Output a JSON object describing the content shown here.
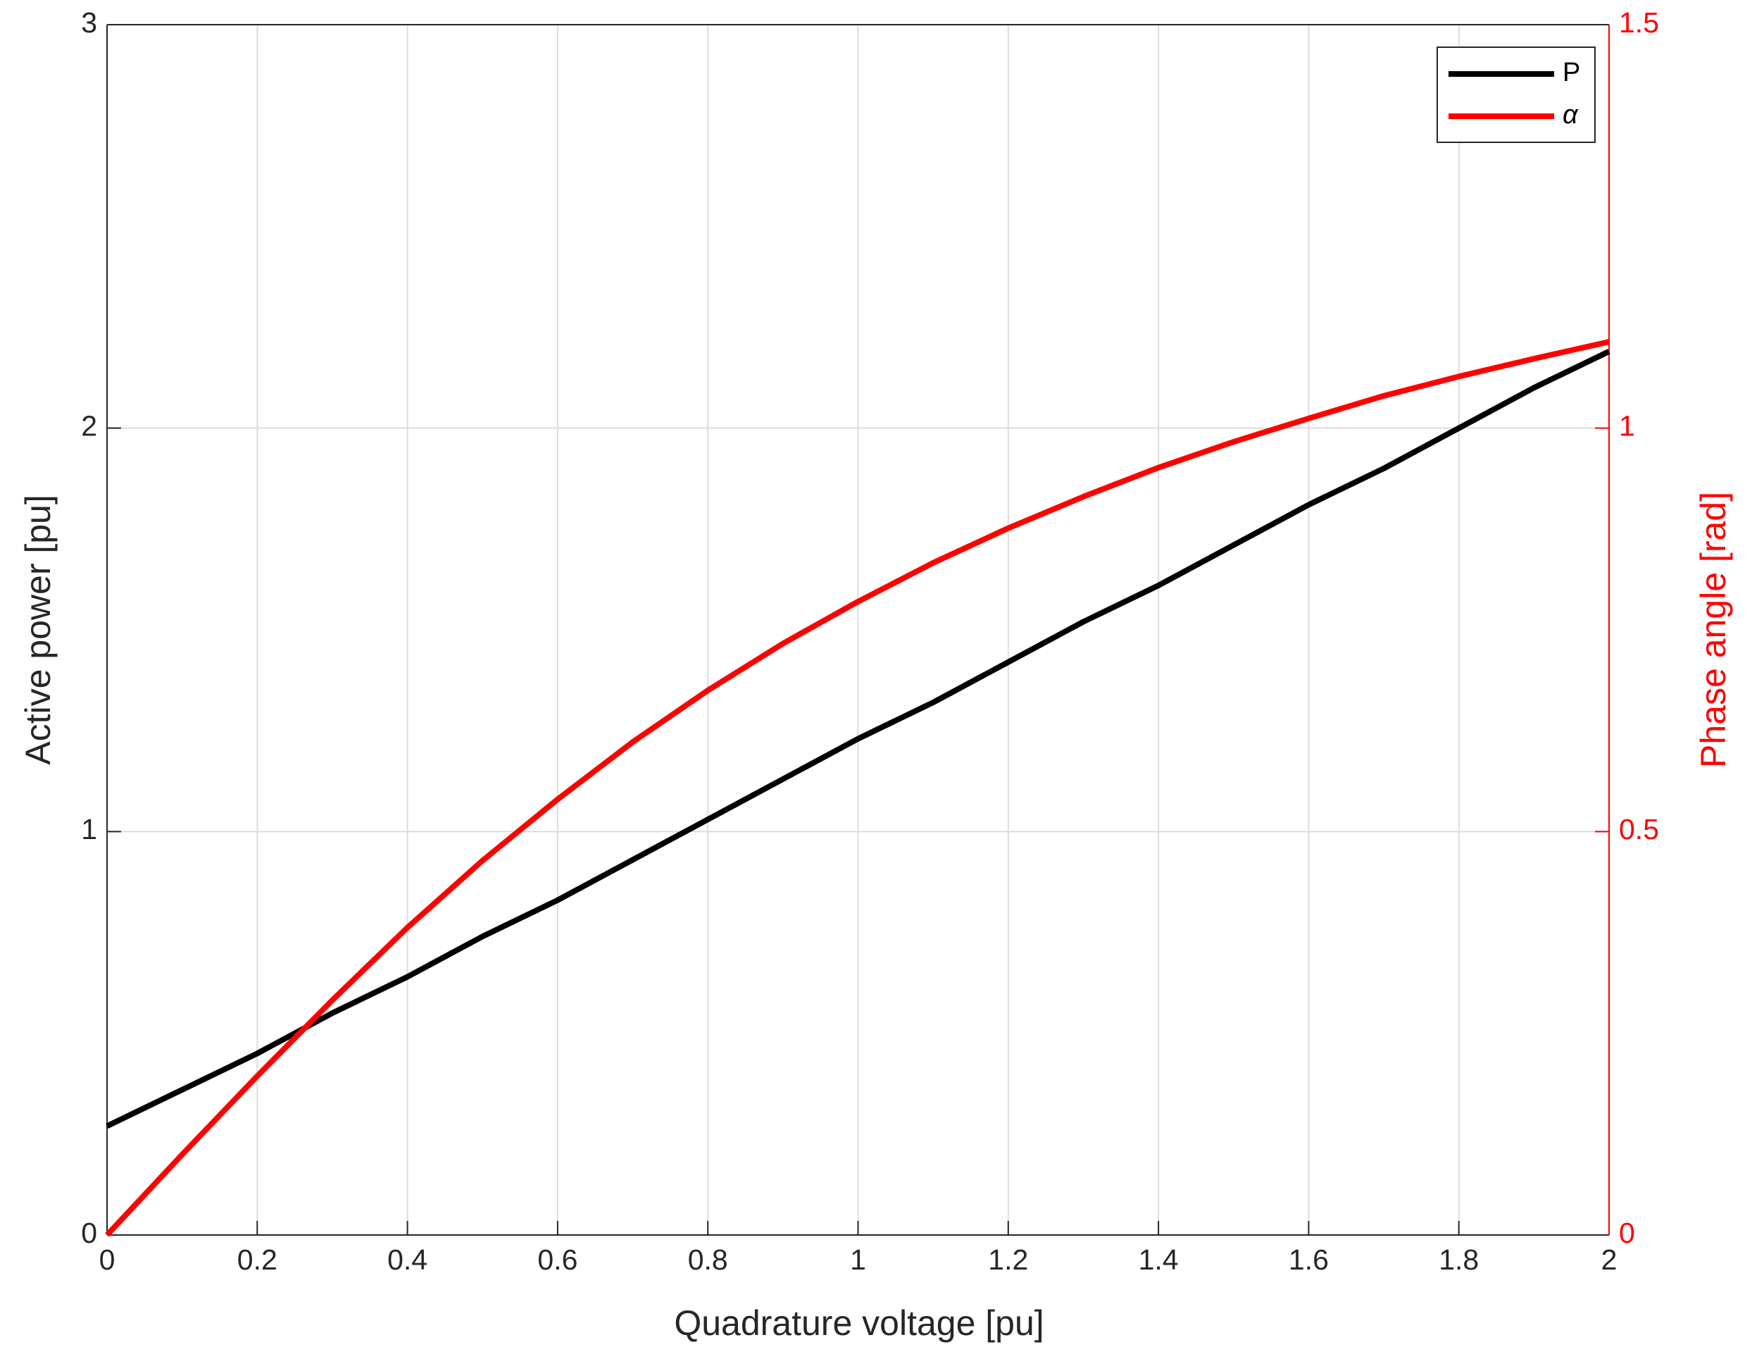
{
  "chart_data": {
    "type": "line",
    "x": [
      0,
      0.1,
      0.2,
      0.3,
      0.4,
      0.5,
      0.6,
      0.7,
      0.8,
      0.9,
      1,
      1.1,
      1.2,
      1.3,
      1.4,
      1.5,
      1.6,
      1.7,
      1.8,
      1.9,
      2
    ],
    "series": [
      {
        "name": "P",
        "color": "#000000",
        "values": [
          0.27,
          0.36,
          0.45,
          0.55,
          0.64,
          0.74,
          0.83,
          0.93,
          1.03,
          1.13,
          1.23,
          1.32,
          1.42,
          1.52,
          1.61,
          1.71,
          1.81,
          1.9,
          2.0,
          2.1,
          2.19
        ]
      },
      {
        "name": "α",
        "color": "#ff0000",
        "axis": "y2",
        "values": [
          0,
          0.0997,
          0.197,
          0.291,
          0.381,
          0.464,
          0.54,
          0.611,
          0.675,
          0.733,
          0.785,
          0.833,
          0.876,
          0.915,
          0.951,
          0.983,
          1.012,
          1.04,
          1.064,
          1.086,
          1.107
        ]
      }
    ],
    "xlabel": "Quadrature voltage [pu]",
    "ylabel": "Active power [pu]",
    "y2label": "Phase angle [rad]",
    "xlim": [
      0,
      2
    ],
    "xticks": [
      0,
      0.2,
      0.4,
      0.6,
      0.8,
      1,
      1.2,
      1.4,
      1.6,
      1.8,
      2
    ],
    "ylim": [
      0,
      3
    ],
    "yticks": [
      0,
      1,
      2,
      3
    ],
    "y2lim": [
      0,
      1.5
    ],
    "y2ticks": [
      0,
      0.5,
      1,
      1.5
    ],
    "grid": true,
    "legend": "northeast"
  }
}
